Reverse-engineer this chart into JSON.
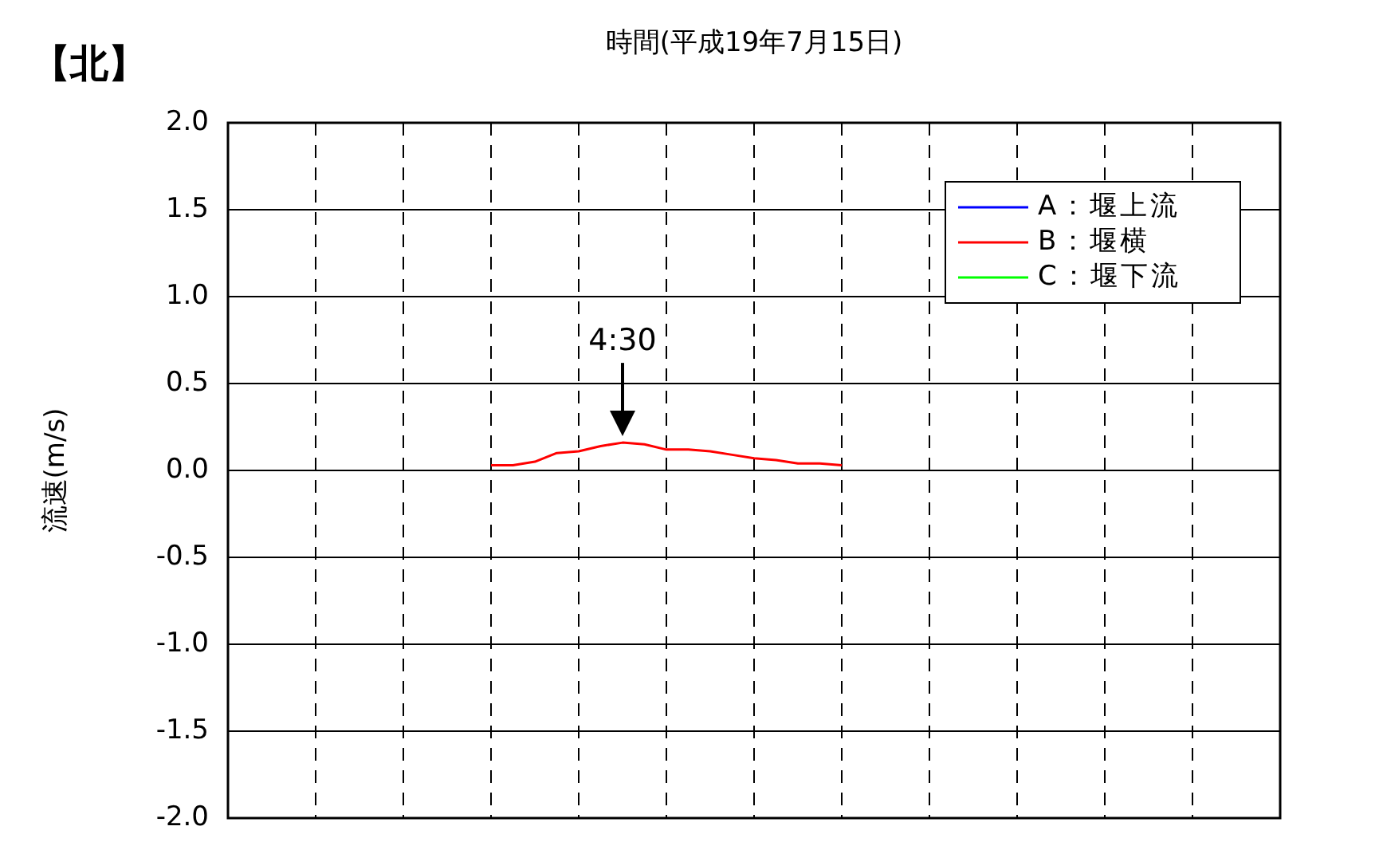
{
  "chart_data": {
    "type": "line",
    "subtitle": "【北】",
    "xlabel": "時間(平成19年7月15日)",
    "ylabel": "流速(m/s)",
    "categories": [
      null,
      null,
      null,
      null,
      null,
      null,
      null,
      null,
      null,
      null,
      null,
      null,
      null,
      null,
      null,
      null,
      null,
      null,
      null,
      null,
      null,
      null,
      null,
      null,
      null,
      null,
      null,
      null,
      null,
      null,
      null,
      null,
      null,
      null,
      null,
      null,
      null,
      null,
      null,
      null,
      null,
      null,
      null,
      null,
      null,
      null,
      null,
      null,
      null
    ],
    "ylim": [
      -2,
      2
    ],
    "yticks": [
      {
        "value": -2,
        "label": "-2.0"
      },
      {
        "value": -1.5,
        "label": "-1.5"
      },
      {
        "value": -1,
        "label": "-1.0"
      },
      {
        "value": -0.5,
        "label": "-0.5"
      },
      {
        "value": 0,
        "label": "0.0"
      },
      {
        "value": 0.5,
        "label": "0.5"
      },
      {
        "value": 1,
        "label": "1.0"
      },
      {
        "value": 1.5,
        "label": "1.5"
      },
      {
        "value": 2,
        "label": "2.0"
      }
    ],
    "grid": true,
    "legend": "top right",
    "line_style": "solid",
    "marker": "none",
    "annotations": [
      "4:30"
    ],
    "series": [
      {
        "name": "A：堰上流",
        "color": "#0000ff",
        "values": [
          null,
          null,
          null,
          null,
          null,
          null,
          null,
          null,
          null,
          null,
          null,
          null,
          null,
          null,
          null,
          null,
          null,
          null,
          null,
          null,
          null,
          null,
          null,
          null,
          null,
          null,
          null,
          null,
          null,
          null,
          null,
          null,
          null,
          null,
          null,
          null,
          null,
          null,
          null,
          null,
          null,
          null,
          null,
          null,
          null,
          null,
          null,
          null,
          null
        ]
      },
      {
        "name": "B：堰横",
        "color": "#ff0000",
        "values": [
          null,
          null,
          null,
          null,
          null,
          null,
          null,
          null,
          null,
          null,
          null,
          null,
          0.03,
          0.03,
          0.05,
          0.1,
          0.11,
          0.14,
          0.16,
          0.15,
          0.12,
          0.12,
          0.11,
          0.09,
          0.07,
          0.06,
          0.04,
          0.04,
          0.03,
          null,
          null,
          null,
          null,
          null,
          null,
          null,
          null,
          null,
          null,
          null,
          null,
          null,
          null,
          null,
          null,
          null,
          null,
          null,
          null
        ]
      },
      {
        "name": "C：堰下流",
        "color": "#00ff00",
        "values": [
          null,
          null,
          null,
          null,
          null,
          null,
          null,
          null,
          null,
          null,
          null,
          null,
          null,
          null,
          null,
          null,
          null,
          null,
          null,
          null,
          null,
          null,
          null,
          null,
          null,
          null,
          null,
          null,
          null,
          null,
          null,
          null,
          null,
          null,
          null,
          null,
          null,
          null,
          null,
          null,
          null,
          null,
          null,
          null,
          null,
          null,
          null,
          null,
          null
        ]
      }
    ]
  }
}
